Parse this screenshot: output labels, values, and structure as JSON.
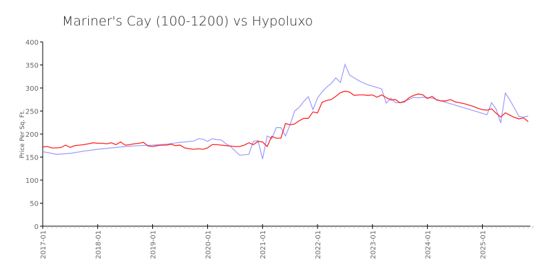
{
  "chart_data": {
    "type": "line",
    "title": "Mariner's Cay (100-1200) vs Hypoluxo",
    "xlabel": "",
    "ylabel": "Price Per Sq. Ft.",
    "ylim": [
      0,
      400
    ],
    "yticks": [
      0,
      50,
      100,
      150,
      200,
      250,
      300,
      350,
      400
    ],
    "x_start": "2017-01",
    "x_unit": "months since 2017-01",
    "xlim": [
      0,
      107
    ],
    "xticks": [
      {
        "month": 0,
        "label": "2017-01"
      },
      {
        "month": 12,
        "label": "2018-01"
      },
      {
        "month": 24,
        "label": "2019-01"
      },
      {
        "month": 36,
        "label": "2020-01"
      },
      {
        "month": 48,
        "label": "2021-01"
      },
      {
        "month": 60,
        "label": "2022-01"
      },
      {
        "month": 72,
        "label": "2023-01"
      },
      {
        "month": 84,
        "label": "2024-01"
      },
      {
        "month": 96,
        "label": "2025-01"
      }
    ],
    "grid": false,
    "series": [
      {
        "color": "#9999ff",
        "x": [
          0,
          3,
          6,
          9,
          12,
          15,
          18,
          21,
          24,
          27,
          30,
          33,
          34,
          35,
          36,
          37,
          38,
          39,
          40,
          41,
          43,
          45,
          46,
          47,
          48,
          49,
          50,
          51,
          52,
          53,
          54,
          55,
          56,
          57,
          58,
          59,
          60,
          61,
          62,
          63,
          64,
          65,
          66,
          67,
          68,
          69,
          70,
          71,
          72,
          73,
          74,
          75,
          76,
          77,
          78,
          79,
          80,
          81,
          82,
          83,
          84,
          85,
          86,
          87,
          88,
          89,
          90,
          91,
          92,
          93,
          94,
          95,
          96,
          97,
          98,
          99,
          100,
          101,
          102,
          103,
          104,
          105,
          106
        ],
        "values": [
          162,
          156,
          158,
          163,
          167,
          170,
          173,
          175,
          176,
          178,
          182,
          185,
          190,
          189,
          184,
          190,
          188,
          187,
          179,
          173,
          154,
          156,
          184,
          186,
          146,
          196,
          190,
          214,
          214,
          196,
          220,
          250,
          258,
          271,
          281,
          253,
          278,
          292,
          302,
          310,
          322,
          312,
          351,
          328,
          322,
          316,
          311,
          307,
          304,
          301,
          298,
          267,
          278,
          268,
          268,
          272,
          275,
          280,
          279,
          280,
          279,
          278,
          275,
          272,
          269,
          266,
          263,
          260,
          257,
          254,
          251,
          248,
          245,
          242,
          268,
          254,
          224,
          289,
          274,
          256,
          238,
          237,
          239
        ]
      },
      {
        "color": "#ff2222",
        "x": [
          0,
          1,
          2,
          3,
          4,
          5,
          6,
          7,
          8,
          9,
          10,
          11,
          12,
          13,
          14,
          15,
          16,
          17,
          18,
          19,
          20,
          21,
          22,
          23,
          24,
          25,
          26,
          27,
          28,
          29,
          30,
          31,
          32,
          33,
          34,
          35,
          36,
          37,
          38,
          39,
          40,
          41,
          42,
          43,
          44,
          45,
          46,
          47,
          48,
          49,
          50,
          51,
          52,
          53,
          54,
          55,
          56,
          57,
          58,
          59,
          60,
          61,
          62,
          63,
          64,
          65,
          66,
          67,
          68,
          69,
          70,
          71,
          72,
          73,
          74,
          75,
          76,
          77,
          78,
          79,
          80,
          81,
          82,
          83,
          84,
          85,
          86,
          87,
          88,
          89,
          90,
          91,
          92,
          93,
          94,
          95,
          96,
          97,
          98,
          99,
          100,
          101,
          102,
          103,
          104,
          105,
          106
        ],
        "values": [
          172,
          173,
          170,
          170,
          171,
          176,
          171,
          175,
          176,
          177,
          179,
          181,
          180,
          180,
          179,
          181,
          177,
          183,
          176,
          177,
          179,
          180,
          182,
          174,
          173,
          175,
          176,
          176,
          178,
          175,
          176,
          170,
          168,
          167,
          168,
          167,
          170,
          177,
          177,
          176,
          175,
          174,
          173,
          173,
          176,
          181,
          177,
          184,
          183,
          173,
          195,
          191,
          191,
          223,
          220,
          222,
          229,
          234,
          234,
          248,
          246,
          269,
          273,
          275,
          282,
          290,
          293,
          291,
          284,
          285,
          285,
          284,
          285,
          280,
          285,
          279,
          274,
          275,
          268,
          270,
          279,
          284,
          287,
          285,
          277,
          282,
          274,
          272,
          272,
          275,
          270,
          268,
          266,
          263,
          260,
          256,
          253,
          252,
          255,
          245,
          237,
          246,
          241,
          236,
          233,
          235,
          227
        ]
      }
    ]
  }
}
